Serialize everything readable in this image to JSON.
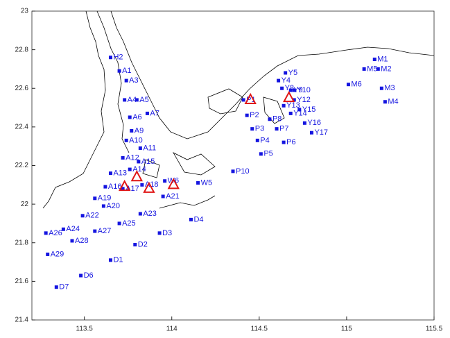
{
  "chart_data": {
    "type": "scatter",
    "xlim": [
      113.2,
      115.5
    ],
    "ylim": [
      21.4,
      23
    ],
    "xticks": [
      113.5,
      114,
      114.5,
      115,
      115.5
    ],
    "yticks": [
      21.4,
      21.6,
      21.8,
      22,
      22.2,
      22.4,
      22.6,
      22.8,
      23
    ],
    "series": [
      {
        "marker": "square",
        "color": "#1515e0",
        "labels": [
          "H2",
          "A1",
          "A3",
          "A4",
          "A5",
          "A6",
          "A7",
          "A9",
          "A10",
          "A11",
          "A12",
          "A13",
          "A14",
          "A15",
          "A16",
          "A17",
          "A18",
          "W6",
          "A21",
          "W5",
          "A19",
          "A20",
          "A22",
          "A23",
          "A25",
          "A24",
          "A26",
          "A27",
          "A28",
          "D3",
          "D2",
          "D4",
          "A29",
          "D1",
          "D6",
          "D7",
          "P10",
          "P1",
          "P2",
          "P3",
          "P4",
          "P5",
          "P6",
          "P7",
          "P8",
          "Y5",
          "Y4",
          "Y8",
          "Y9",
          "Y10",
          "Y12",
          "Y13",
          "Y14",
          "Y15",
          "Y16",
          "Y17",
          "M1",
          "M5",
          "M2",
          "M6",
          "M3",
          "M4"
        ],
        "x": [
          113.65,
          113.7,
          113.74,
          113.73,
          113.8,
          113.76,
          113.86,
          113.77,
          113.74,
          113.82,
          113.72,
          113.65,
          113.76,
          113.81,
          113.62,
          113.72,
          113.83,
          113.96,
          113.95,
          114.15,
          113.56,
          113.61,
          113.49,
          113.82,
          113.7,
          113.38,
          113.28,
          113.56,
          113.43,
          113.93,
          113.79,
          114.11,
          113.29,
          113.65,
          113.48,
          113.34,
          114.35,
          114.41,
          114.43,
          114.46,
          114.49,
          114.51,
          114.64,
          114.6,
          114.56,
          114.65,
          114.61,
          114.63,
          114.68,
          114.7,
          114.7,
          114.64,
          114.68,
          114.73,
          114.76,
          114.8,
          115.16,
          115.1,
          115.18,
          115.01,
          115.2,
          115.22
        ],
        "y": [
          22.76,
          22.69,
          22.64,
          22.54,
          22.54,
          22.45,
          22.47,
          22.38,
          22.33,
          22.29,
          22.24,
          22.16,
          22.18,
          22.22,
          22.09,
          22.08,
          22.1,
          22.12,
          22.04,
          22.11,
          22.03,
          21.99,
          21.94,
          21.95,
          21.9,
          21.87,
          21.85,
          21.86,
          21.81,
          21.85,
          21.79,
          21.92,
          21.74,
          21.71,
          21.63,
          21.57,
          22.17,
          22.54,
          22.46,
          22.39,
          22.33,
          22.26,
          22.32,
          22.39,
          22.44,
          22.68,
          22.64,
          22.6,
          22.59,
          22.59,
          22.54,
          22.51,
          22.47,
          22.49,
          22.42,
          22.37,
          22.75,
          22.7,
          22.7,
          22.62,
          22.6,
          22.53
        ]
      },
      {
        "marker": "triangle",
        "color": "#e01515",
        "x": [
          113.73,
          113.8,
          113.87,
          114.01,
          114.45,
          114.67
        ],
        "y": [
          22.09,
          22.14,
          22.08,
          22.1,
          22.54,
          22.55
        ]
      }
    ]
  }
}
